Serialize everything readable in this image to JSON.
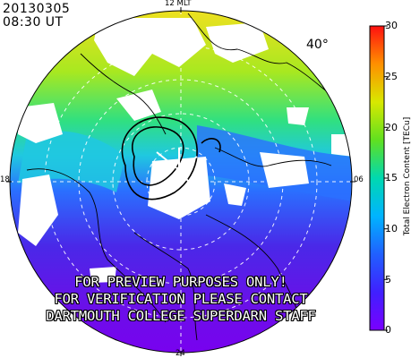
{
  "header": {
    "date": "20130305",
    "time": "08:30 UT"
  },
  "mlt_labels": {
    "top": "12 MLT",
    "right": "06",
    "bottom": "24",
    "left": "18"
  },
  "latitude_label": "40°",
  "colorbar": {
    "title": "Total Electron Content [TECu]",
    "ticks": [
      "30",
      "25",
      "20",
      "15",
      "10",
      "5",
      "0"
    ],
    "min": 0,
    "max": 30,
    "colors": [
      "#7a00ff",
      "#2050ff",
      "#00b4ff",
      "#00d8c8",
      "#20e060",
      "#a0e800",
      "#ffe800",
      "#ff9000",
      "#ff1010"
    ]
  },
  "watermark": [
    "FOR PREVIEW PURPOSES ONLY!",
    "FOR VERIFICATION PLEASE CONTACT",
    "DARTMOUTH COLLEGE SUPERDARN STAFF"
  ]
}
